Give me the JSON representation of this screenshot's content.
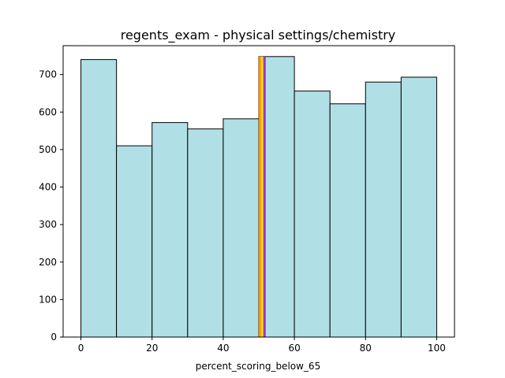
{
  "chart_data": {
    "type": "bar",
    "title": "regents_exam - physical settings/chemistry",
    "xlabel": "percent_scoring_below_65",
    "ylabel": "",
    "xlim": [
      -5,
      105
    ],
    "ylim": [
      0,
      777
    ],
    "x_ticks": [
      0,
      20,
      40,
      60,
      80,
      100
    ],
    "y_ticks": [
      0,
      100,
      200,
      300,
      400,
      500,
      600,
      700
    ],
    "bins": [
      {
        "start": 0,
        "end": 10,
        "count": 740
      },
      {
        "start": 10,
        "end": 20,
        "count": 510
      },
      {
        "start": 20,
        "end": 30,
        "count": 572
      },
      {
        "start": 30,
        "end": 40,
        "count": 555
      },
      {
        "start": 40,
        "end": 50,
        "count": 582
      },
      {
        "start": 50,
        "end": 60,
        "count": 748
      },
      {
        "start": 60,
        "end": 70,
        "count": 656
      },
      {
        "start": 70,
        "end": 80,
        "count": 622
      },
      {
        "start": 80,
        "end": 90,
        "count": 680
      },
      {
        "start": 90,
        "end": 100,
        "count": 693
      }
    ],
    "bar_color": "#b0e0e6",
    "bar_edge_color": "#000000",
    "vertical_lines": [
      {
        "x": 50.3,
        "color": "#ff8c00"
      },
      {
        "x": 50.9,
        "color": "#ffd700"
      },
      {
        "x": 51.6,
        "color": "#9932cc"
      }
    ],
    "vertical_line_top": 748,
    "grid": false
  }
}
